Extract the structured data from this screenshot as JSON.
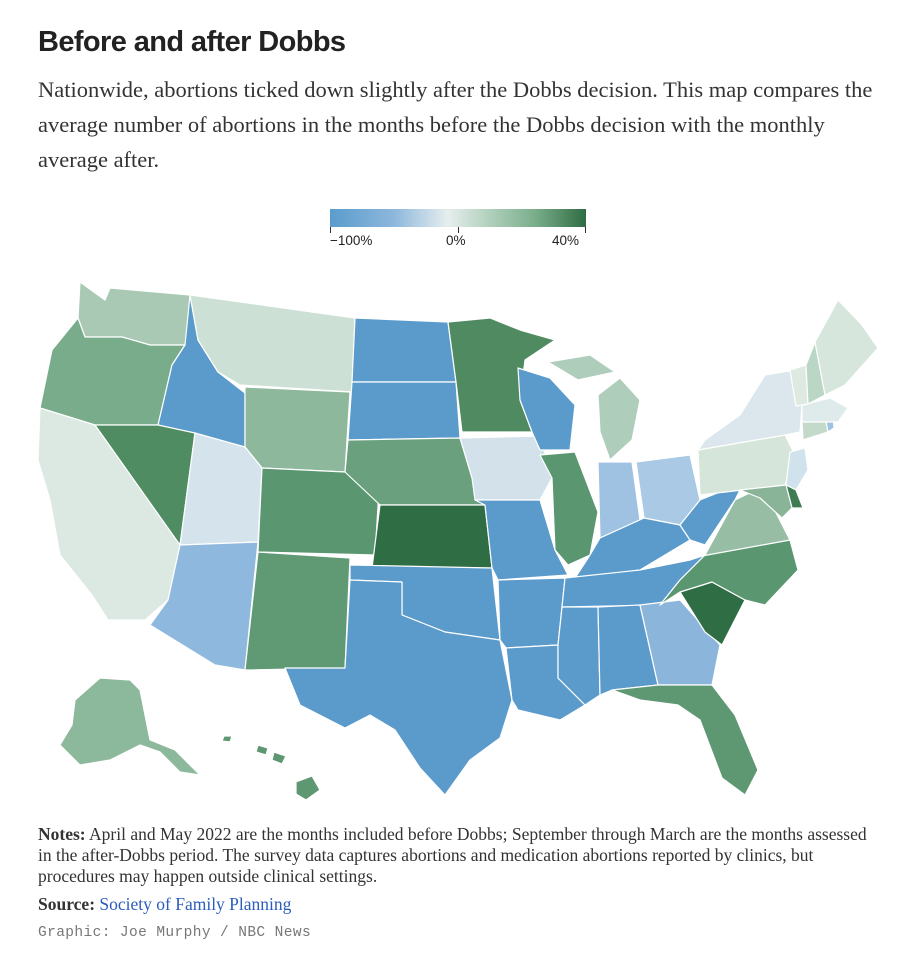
{
  "title": "Before and after Dobbs",
  "subtitle": "Nationwide, abortions ticked down slightly after the Dobbs decision. This map compares the average number of abortions in the months before the Dobbs decision with the monthly average after.",
  "legend": {
    "min_label": "−100%",
    "mid_label": "0%",
    "max_label": "40%",
    "colors": [
      "#5b9ccd",
      "#8db7dc",
      "#e6eeee",
      "#b8d4c3",
      "#7aae8b",
      "#2f6c43"
    ]
  },
  "map": {
    "states": [
      {
        "code": "WA",
        "color": "#a9c9b5"
      },
      {
        "code": "OR",
        "color": "#79ac8b"
      },
      {
        "code": "CA",
        "color": "#dce8e2"
      },
      {
        "code": "ID",
        "color": "#5b9bcc"
      },
      {
        "code": "NV",
        "color": "#4f8c62"
      },
      {
        "code": "MT",
        "color": "#cde0d5"
      },
      {
        "code": "WY",
        "color": "#8db89c"
      },
      {
        "code": "UT",
        "color": "#d5e4ec"
      },
      {
        "code": "AZ",
        "color": "#8fb8de"
      },
      {
        "code": "CO",
        "color": "#5a9670"
      },
      {
        "code": "NM",
        "color": "#5f9a74"
      },
      {
        "code": "ND",
        "color": "#5b9bcc"
      },
      {
        "code": "SD",
        "color": "#5b9bcc"
      },
      {
        "code": "NE",
        "color": "#6ba07f"
      },
      {
        "code": "KS",
        "color": "#2f6e45"
      },
      {
        "code": "OK",
        "color": "#5b9bcc"
      },
      {
        "code": "TX",
        "color": "#5b9bcc"
      },
      {
        "code": "MN",
        "color": "#4f8a60"
      },
      {
        "code": "IA",
        "color": "#d3e2ea"
      },
      {
        "code": "MO",
        "color": "#5b9bcc"
      },
      {
        "code": "AR",
        "color": "#5b9bcc"
      },
      {
        "code": "LA",
        "color": "#5b9bcc"
      },
      {
        "code": "WI",
        "color": "#5b9bcc"
      },
      {
        "code": "IL",
        "color": "#5a9670"
      },
      {
        "code": "MI",
        "color": "#afcdbb"
      },
      {
        "code": "IN",
        "color": "#9fc2e2"
      },
      {
        "code": "OH",
        "color": "#a9c9e4"
      },
      {
        "code": "KY",
        "color": "#5b9bcc"
      },
      {
        "code": "TN",
        "color": "#5b9bcc"
      },
      {
        "code": "MS",
        "color": "#5b9bcc"
      },
      {
        "code": "AL",
        "color": "#5b9bcc"
      },
      {
        "code": "GA",
        "color": "#8cb5dc"
      },
      {
        "code": "FL",
        "color": "#5e9872"
      },
      {
        "code": "SC",
        "color": "#2f6e45"
      },
      {
        "code": "NC",
        "color": "#5a9670"
      },
      {
        "code": "VA",
        "color": "#97bea5"
      },
      {
        "code": "WV",
        "color": "#5b9bcc"
      },
      {
        "code": "PA",
        "color": "#d6e5d9"
      },
      {
        "code": "NY",
        "color": "#dbe7ec"
      },
      {
        "code": "NJ",
        "color": "#d0e2ec"
      },
      {
        "code": "DE",
        "color": "#3e7c51"
      },
      {
        "code": "MD",
        "color": "#89b497"
      },
      {
        "code": "CT",
        "color": "#c3dacb"
      },
      {
        "code": "RI",
        "color": "#9fc2e2"
      },
      {
        "code": "MA",
        "color": "#dfeaea"
      },
      {
        "code": "VT",
        "color": "#dde9e1"
      },
      {
        "code": "NH",
        "color": "#bad6c4"
      },
      {
        "code": "ME",
        "color": "#d6e6dc"
      },
      {
        "code": "AK",
        "color": "#8cb89b"
      },
      {
        "code": "HI",
        "color": "#5e9872"
      }
    ]
  },
  "notes": {
    "label": "Notes:",
    "text": " April and May 2022 are the months included before Dobbs; September through March are the months assessed in the after-Dobbs period. The survey data captures abortions and medication abortions reported by clinics, but procedures may happen outside clinical settings."
  },
  "source": {
    "label": "Source:",
    "link_text": "Society of Family Planning"
  },
  "credit": "Graphic: Joe Murphy / NBC News"
}
